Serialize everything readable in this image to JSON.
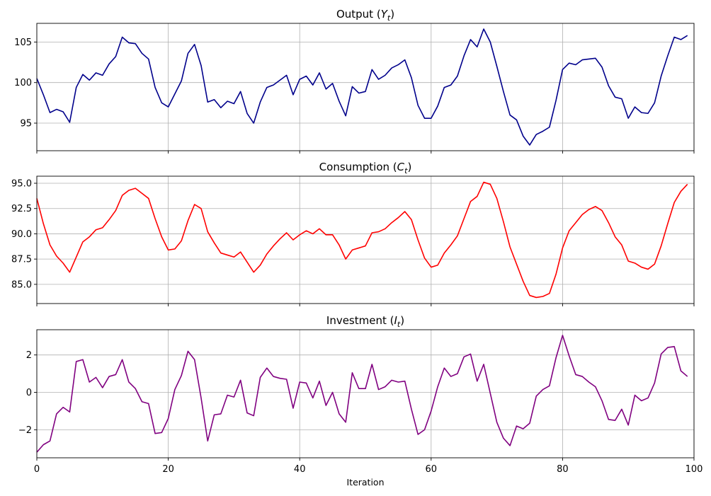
{
  "chart_data": [
    {
      "type": "line",
      "title": "Output",
      "title_symbol": "Y",
      "title_subscript": "t",
      "xlabel": "",
      "ylabel": "",
      "xlim": [
        0,
        100
      ],
      "ylim": [
        91.6,
        107.3
      ],
      "yticks": [
        95,
        100,
        105
      ],
      "xticks": [
        0,
        20,
        40,
        60,
        80,
        100
      ],
      "show_xtick_labels": false,
      "grid": true,
      "color": "#00008b",
      "series": [
        {
          "x": [
            0,
            1,
            2,
            3,
            4,
            5,
            6,
            7,
            8,
            9,
            10,
            11,
            12,
            13,
            14,
            15,
            16,
            17,
            18,
            19,
            20,
            21,
            22,
            23,
            24,
            25,
            26,
            27,
            28,
            29,
            30,
            31,
            32,
            33,
            34,
            35,
            36,
            37,
            38,
            39,
            40,
            41,
            42,
            43,
            44,
            45,
            46,
            47,
            48,
            49,
            50,
            51,
            52,
            53,
            54,
            55,
            56,
            57,
            58,
            59,
            60,
            61,
            62,
            63,
            64,
            65,
            66,
            67,
            68,
            69,
            70,
            71,
            72,
            73,
            74,
            75,
            76,
            77,
            78,
            79,
            80,
            81,
            82,
            83,
            84,
            85,
            86,
            87,
            88,
            89,
            90,
            91,
            92,
            93,
            94,
            95,
            96,
            97,
            98,
            99
          ],
          "values": [
            100.5,
            98.5,
            96.3,
            96.7,
            96.4,
            95.1,
            99.4,
            101.0,
            100.3,
            101.2,
            100.9,
            102.3,
            103.2,
            105.6,
            104.9,
            104.8,
            103.6,
            102.9,
            99.4,
            97.5,
            97.0,
            98.6,
            100.2,
            103.6,
            104.7,
            102.1,
            97.6,
            97.9,
            96.9,
            97.7,
            97.4,
            98.9,
            96.2,
            95.0,
            97.6,
            99.4,
            99.7,
            100.3,
            100.9,
            98.5,
            100.4,
            100.8,
            99.7,
            101.2,
            99.2,
            99.9,
            97.7,
            95.9,
            99.5,
            98.7,
            98.9,
            101.6,
            100.4,
            100.9,
            101.8,
            102.2,
            102.8,
            100.6,
            97.2,
            95.6,
            95.6,
            97.1,
            99.4,
            99.7,
            100.8,
            103.3,
            105.3,
            104.4,
            106.6,
            105.0,
            102.0,
            98.9,
            96.0,
            95.4,
            93.4,
            92.3,
            93.6,
            94.0,
            94.5,
            97.8,
            101.6,
            102.4,
            102.2,
            102.8,
            102.9,
            103.0,
            101.9,
            99.6,
            98.2,
            98.0,
            95.6,
            97.0,
            96.3,
            96.2,
            97.5,
            100.8,
            103.3,
            105.6,
            105.3,
            105.8
          ]
        }
      ]
    },
    {
      "type": "line",
      "title": "Consumption",
      "title_symbol": "C",
      "title_subscript": "t",
      "xlabel": "",
      "ylabel": "",
      "xlim": [
        0,
        100
      ],
      "ylim": [
        83.1,
        95.7
      ],
      "yticks": [
        85.0,
        87.5,
        90.0,
        92.5,
        95.0
      ],
      "ytick_labels": [
        "85.0",
        "87.5",
        "90.0",
        "92.5",
        "95.0"
      ],
      "xticks": [
        0,
        20,
        40,
        60,
        80,
        100
      ],
      "show_xtick_labels": false,
      "grid": true,
      "color": "#ff0000",
      "series": [
        {
          "x": [
            0,
            1,
            2,
            3,
            4,
            5,
            6,
            7,
            8,
            9,
            10,
            11,
            12,
            13,
            14,
            15,
            16,
            17,
            18,
            19,
            20,
            21,
            22,
            23,
            24,
            25,
            26,
            27,
            28,
            29,
            30,
            31,
            32,
            33,
            34,
            35,
            36,
            37,
            38,
            39,
            40,
            41,
            42,
            43,
            44,
            45,
            46,
            47,
            48,
            49,
            50,
            51,
            52,
            53,
            54,
            55,
            56,
            57,
            58,
            59,
            60,
            61,
            62,
            63,
            64,
            65,
            66,
            67,
            68,
            69,
            70,
            71,
            72,
            73,
            74,
            75,
            76,
            77,
            78,
            79,
            80,
            81,
            82,
            83,
            84,
            85,
            86,
            87,
            88,
            89,
            90,
            91,
            92,
            93,
            94,
            95,
            96,
            97,
            98,
            99
          ],
          "values": [
            93.5,
            91.0,
            88.9,
            87.8,
            87.1,
            86.2,
            87.7,
            89.2,
            89.7,
            90.4,
            90.6,
            91.4,
            92.3,
            93.8,
            94.3,
            94.5,
            94.0,
            93.5,
            91.5,
            89.7,
            88.4,
            88.5,
            89.3,
            91.3,
            92.9,
            92.5,
            90.2,
            89.1,
            88.1,
            87.9,
            87.7,
            88.2,
            87.2,
            86.2,
            86.9,
            88.0,
            88.8,
            89.5,
            90.1,
            89.4,
            89.9,
            90.3,
            90.0,
            90.5,
            89.9,
            89.9,
            88.9,
            87.5,
            88.4,
            88.6,
            88.8,
            90.1,
            90.2,
            90.5,
            91.1,
            91.6,
            92.2,
            91.4,
            89.4,
            87.6,
            86.7,
            86.9,
            88.1,
            88.9,
            89.8,
            91.5,
            93.2,
            93.7,
            95.1,
            94.9,
            93.5,
            91.2,
            88.7,
            87.0,
            85.3,
            83.9,
            83.7,
            83.8,
            84.1,
            86.0,
            88.6,
            90.3,
            91.1,
            91.9,
            92.4,
            92.7,
            92.3,
            91.1,
            89.7,
            88.9,
            87.3,
            87.1,
            86.7,
            86.5,
            87.0,
            88.8,
            91.0,
            93.1,
            94.2,
            94.9
          ]
        }
      ]
    },
    {
      "type": "line",
      "title": "Investment",
      "title_symbol": "I",
      "title_subscript": "t",
      "xlabel": "Iteration",
      "ylabel": "",
      "xlim": [
        0,
        100
      ],
      "ylim": [
        -3.5,
        3.35
      ],
      "yticks": [
        -2,
        0,
        2
      ],
      "ytick_labels": [
        "−2",
        "0",
        "2"
      ],
      "xticks": [
        0,
        20,
        40,
        60,
        80,
        100
      ],
      "xtick_labels": [
        "0",
        "20",
        "40",
        "60",
        "80",
        "100"
      ],
      "show_xtick_labels": true,
      "grid": true,
      "color": "#800080",
      "series": [
        {
          "x": [
            0,
            1,
            2,
            3,
            4,
            5,
            6,
            7,
            8,
            9,
            10,
            11,
            12,
            13,
            14,
            15,
            16,
            17,
            18,
            19,
            20,
            21,
            22,
            23,
            24,
            25,
            26,
            27,
            28,
            29,
            30,
            31,
            32,
            33,
            34,
            35,
            36,
            37,
            38,
            39,
            40,
            41,
            42,
            43,
            44,
            45,
            46,
            47,
            48,
            49,
            50,
            51,
            52,
            53,
            54,
            55,
            56,
            57,
            58,
            59,
            60,
            61,
            62,
            63,
            64,
            65,
            66,
            67,
            68,
            69,
            70,
            71,
            72,
            73,
            74,
            75,
            76,
            77,
            78,
            79,
            80,
            81,
            82,
            83,
            84,
            85,
            86,
            87,
            88,
            89,
            90,
            91,
            92,
            93,
            94,
            95,
            96,
            97,
            98,
            99
          ],
          "values": [
            -3.2,
            -2.8,
            -2.6,
            -1.15,
            -0.8,
            -1.05,
            1.65,
            1.75,
            0.55,
            0.8,
            0.25,
            0.85,
            0.95,
            1.75,
            0.55,
            0.2,
            -0.5,
            -0.6,
            -2.2,
            -2.15,
            -1.4,
            0.15,
            0.9,
            2.2,
            1.75,
            -0.3,
            -2.6,
            -1.2,
            -1.15,
            -0.15,
            -0.25,
            0.65,
            -1.1,
            -1.25,
            0.8,
            1.3,
            0.85,
            0.75,
            0.7,
            -0.85,
            0.55,
            0.5,
            -0.3,
            0.6,
            -0.7,
            0.0,
            -1.15,
            -1.6,
            1.05,
            0.2,
            0.2,
            1.5,
            0.15,
            0.3,
            0.65,
            0.55,
            0.6,
            -0.9,
            -2.25,
            -2.0,
            -1.0,
            0.3,
            1.3,
            0.85,
            1.0,
            1.9,
            2.05,
            0.6,
            1.5,
            -0.05,
            -1.6,
            -2.45,
            -2.85,
            -1.8,
            -1.95,
            -1.65,
            -0.2,
            0.15,
            0.35,
            1.85,
            3.05,
            1.95,
            0.95,
            0.85,
            0.55,
            0.3,
            -0.45,
            -1.45,
            -1.5,
            -0.9,
            -1.75,
            -0.15,
            -0.45,
            -0.3,
            0.5,
            2.05,
            2.4,
            2.45,
            1.15,
            0.85
          ]
        }
      ]
    }
  ]
}
